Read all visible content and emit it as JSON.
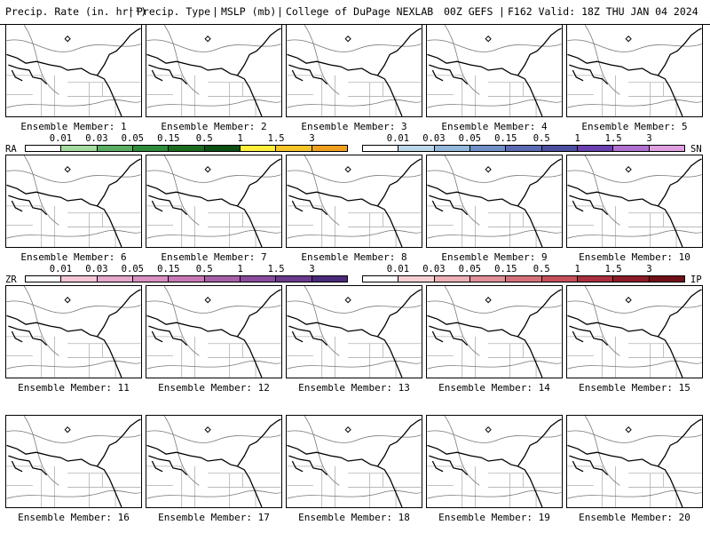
{
  "header": {
    "product": "Precip. Rate (in. hr⁻¹)",
    "ptype": "Precip. Type",
    "mslp": "MSLP (mb)",
    "source": "College of DuPage NEXLAB",
    "run": "00Z GEFS",
    "valid": "F162 Valid: 18Z THU JAN 04 2024"
  },
  "panels": [
    {
      "label": "Ensemble Member: 1"
    },
    {
      "label": "Ensemble Member: 2"
    },
    {
      "label": "Ensemble Member: 3"
    },
    {
      "label": "Ensemble Member: 4"
    },
    {
      "label": "Ensemble Member: 5"
    },
    {
      "label": "Ensemble Member: 6"
    },
    {
      "label": "Ensemble Member: 7"
    },
    {
      "label": "Ensemble Member: 8"
    },
    {
      "label": "Ensemble Member: 9"
    },
    {
      "label": "Ensemble Member: 10"
    },
    {
      "label": "Ensemble Member: 11"
    },
    {
      "label": "Ensemble Member: 12"
    },
    {
      "label": "Ensemble Member: 13"
    },
    {
      "label": "Ensemble Member: 14"
    },
    {
      "label": "Ensemble Member: 15"
    },
    {
      "label": "Ensemble Member: 16"
    },
    {
      "label": "Ensemble Member: 17"
    },
    {
      "label": "Ensemble Member: 18"
    },
    {
      "label": "Ensemble Member: 19"
    },
    {
      "label": "Ensemble Member: 20"
    }
  ],
  "scales": {
    "ra": {
      "tag": "RA",
      "ticks": [
        "0.01",
        "0.03",
        "0.05",
        "0.15",
        "0.5",
        "1",
        "1.5",
        "3"
      ],
      "colors": [
        "#ffffff",
        "#a6dba0",
        "#5aae61",
        "#2e8b3a",
        "#1a6b1e",
        "#0b4f12",
        "#ffef3a",
        "#f5c52a",
        "#f0a020"
      ]
    },
    "sn": {
      "tag": "SN",
      "ticks": [
        "0.01",
        "0.03",
        "0.05",
        "0.15",
        "0.5",
        "1",
        "1.5",
        "3"
      ],
      "colors": [
        "#ffffff",
        "#bcd6ea",
        "#93b8dc",
        "#7090c8",
        "#5a6bb3",
        "#4b4fa0",
        "#6a3fb0",
        "#b070d0",
        "#e0a0e0"
      ]
    },
    "zr": {
      "tag": "ZR",
      "ticks": [
        "0.01",
        "0.03",
        "0.05",
        "0.15",
        "0.5",
        "1",
        "1.5",
        "3"
      ],
      "colors": [
        "#ffffff",
        "#f4c6d8",
        "#e6a8cc",
        "#d890c0",
        "#c878b6",
        "#a860a8",
        "#8a4a9e",
        "#6a3a8c",
        "#4a2a7a"
      ]
    },
    "ip": {
      "tag": "IP",
      "ticks": [
        "0.01",
        "0.03",
        "0.05",
        "0.15",
        "0.5",
        "1",
        "1.5",
        "3"
      ],
      "colors": [
        "#ffffff",
        "#f6d0d4",
        "#eeb0b6",
        "#e29098",
        "#d4707a",
        "#c4505c",
        "#a83040",
        "#8c1c2a",
        "#701018"
      ]
    }
  }
}
